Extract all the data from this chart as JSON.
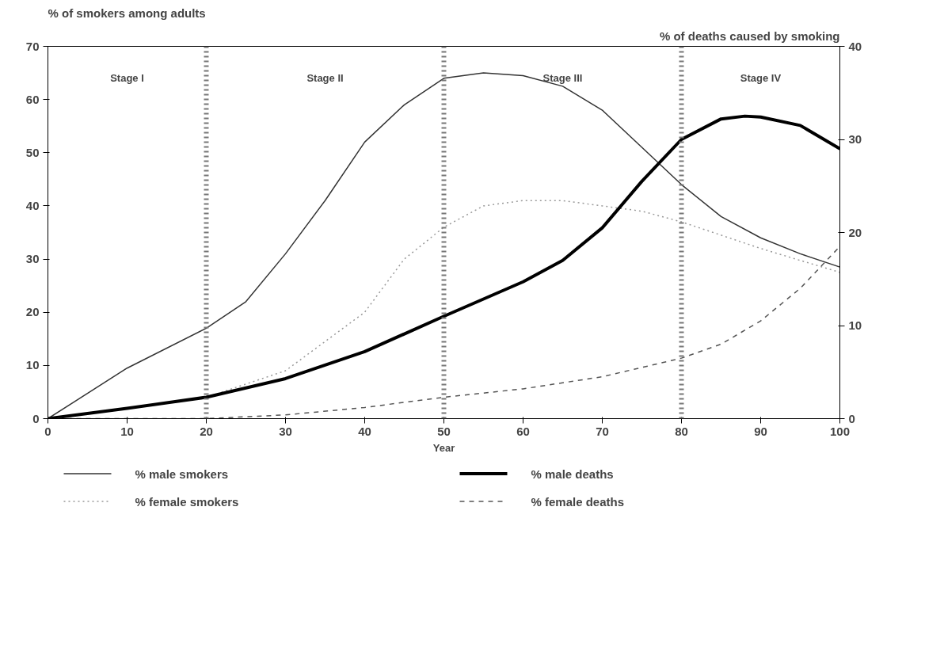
{
  "chart_data": {
    "type": "line",
    "xlabel": "Year",
    "ylabel": "% of smokers among adults",
    "y2label": "% of deaths caused by smoking",
    "xlim": [
      0,
      100
    ],
    "xticks": [
      0,
      10,
      20,
      30,
      40,
      50,
      60,
      70,
      80,
      90,
      100
    ],
    "ylim": [
      0,
      70
    ],
    "yticks": [
      0,
      10,
      20,
      30,
      40,
      50,
      60,
      70
    ],
    "y2lim": [
      0,
      40
    ],
    "y2ticks": [
      0,
      10,
      20,
      30,
      40
    ],
    "grid": false,
    "legend": "bottom",
    "marker": "none",
    "series": [
      {
        "name": "% male smokers",
        "color": "#333333",
        "line_style": "solid",
        "x": [
          0,
          10,
          20,
          25,
          30,
          35,
          40,
          45,
          50,
          55,
          60,
          65,
          70,
          75,
          80,
          85,
          90,
          95,
          100
        ],
        "values": [
          0,
          9.5,
          17,
          22,
          31,
          41,
          52,
          59,
          64,
          65,
          64.5,
          62.5,
          58,
          51,
          44,
          38,
          34,
          31,
          28.5
        ]
      },
      {
        "name": "% female smokers",
        "color": "#999999",
        "line_style": "dotted",
        "x": [
          0,
          10,
          20,
          30,
          40,
          45,
          50,
          55,
          60,
          65,
          70,
          75,
          80,
          90,
          100
        ],
        "values": [
          0,
          2,
          4,
          9,
          20,
          30,
          36,
          40,
          41,
          41,
          40,
          39,
          37,
          32,
          27.5
        ]
      },
      {
        "name": "% male deaths",
        "color": "#000000",
        "line_style": "solid",
        "axis": "y2",
        "x": [
          0,
          10,
          20,
          30,
          40,
          50,
          60,
          65,
          70,
          75,
          80,
          85,
          88,
          90,
          95,
          100
        ],
        "values": [
          0,
          1.1,
          2.3,
          4.3,
          7.2,
          11,
          14.7,
          17,
          20.5,
          25.5,
          30,
          32.2,
          32.5,
          32.4,
          31.5,
          29
        ]
      },
      {
        "name": "% female deaths",
        "color": "#555555",
        "line_style": "dashed",
        "axis": "y2",
        "x": [
          0,
          20,
          30,
          40,
          50,
          60,
          70,
          80,
          85,
          90,
          95,
          100
        ],
        "values": [
          0,
          0,
          0.4,
          1.2,
          2.3,
          3.2,
          4.5,
          6.5,
          8,
          10.5,
          14,
          18.5
        ]
      }
    ],
    "ref_lines": [
      {
        "axis": "x",
        "value": 20,
        "line_style": "dotted",
        "color": "#777777"
      },
      {
        "axis": "x",
        "value": 50,
        "line_style": "dotted",
        "color": "#777777"
      },
      {
        "axis": "x",
        "value": 80,
        "line_style": "dotted",
        "color": "#777777"
      }
    ],
    "annotations": [
      "Stage I",
      "Stage II",
      "Stage III",
      "Stage IV"
    ]
  }
}
